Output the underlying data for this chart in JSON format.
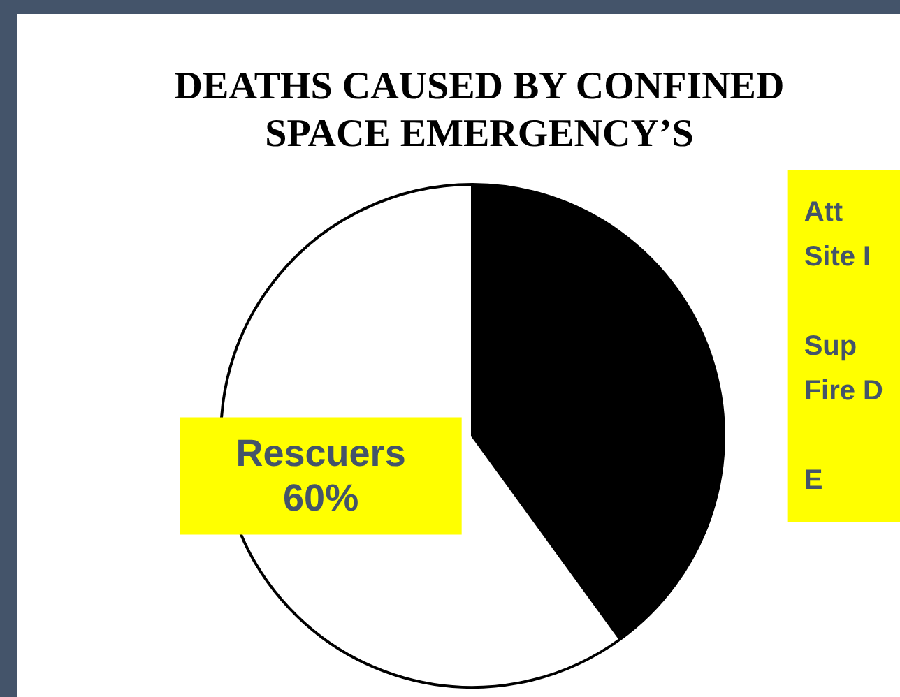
{
  "chart_data": {
    "type": "pie",
    "title": "DEATHS CAUSED BY CONFINED\nSPACE EMERGENCY’S",
    "categories": [
      null,
      "Rescuers"
    ],
    "values": [
      40,
      60
    ],
    "colors": [
      "#000000",
      "#ffffff"
    ],
    "value_labels": [
      null,
      "60%"
    ],
    "annotations": [
      "Att\nSite I\n\nSup\nFire D\n\nE"
    ],
    "legend": false
  }
}
